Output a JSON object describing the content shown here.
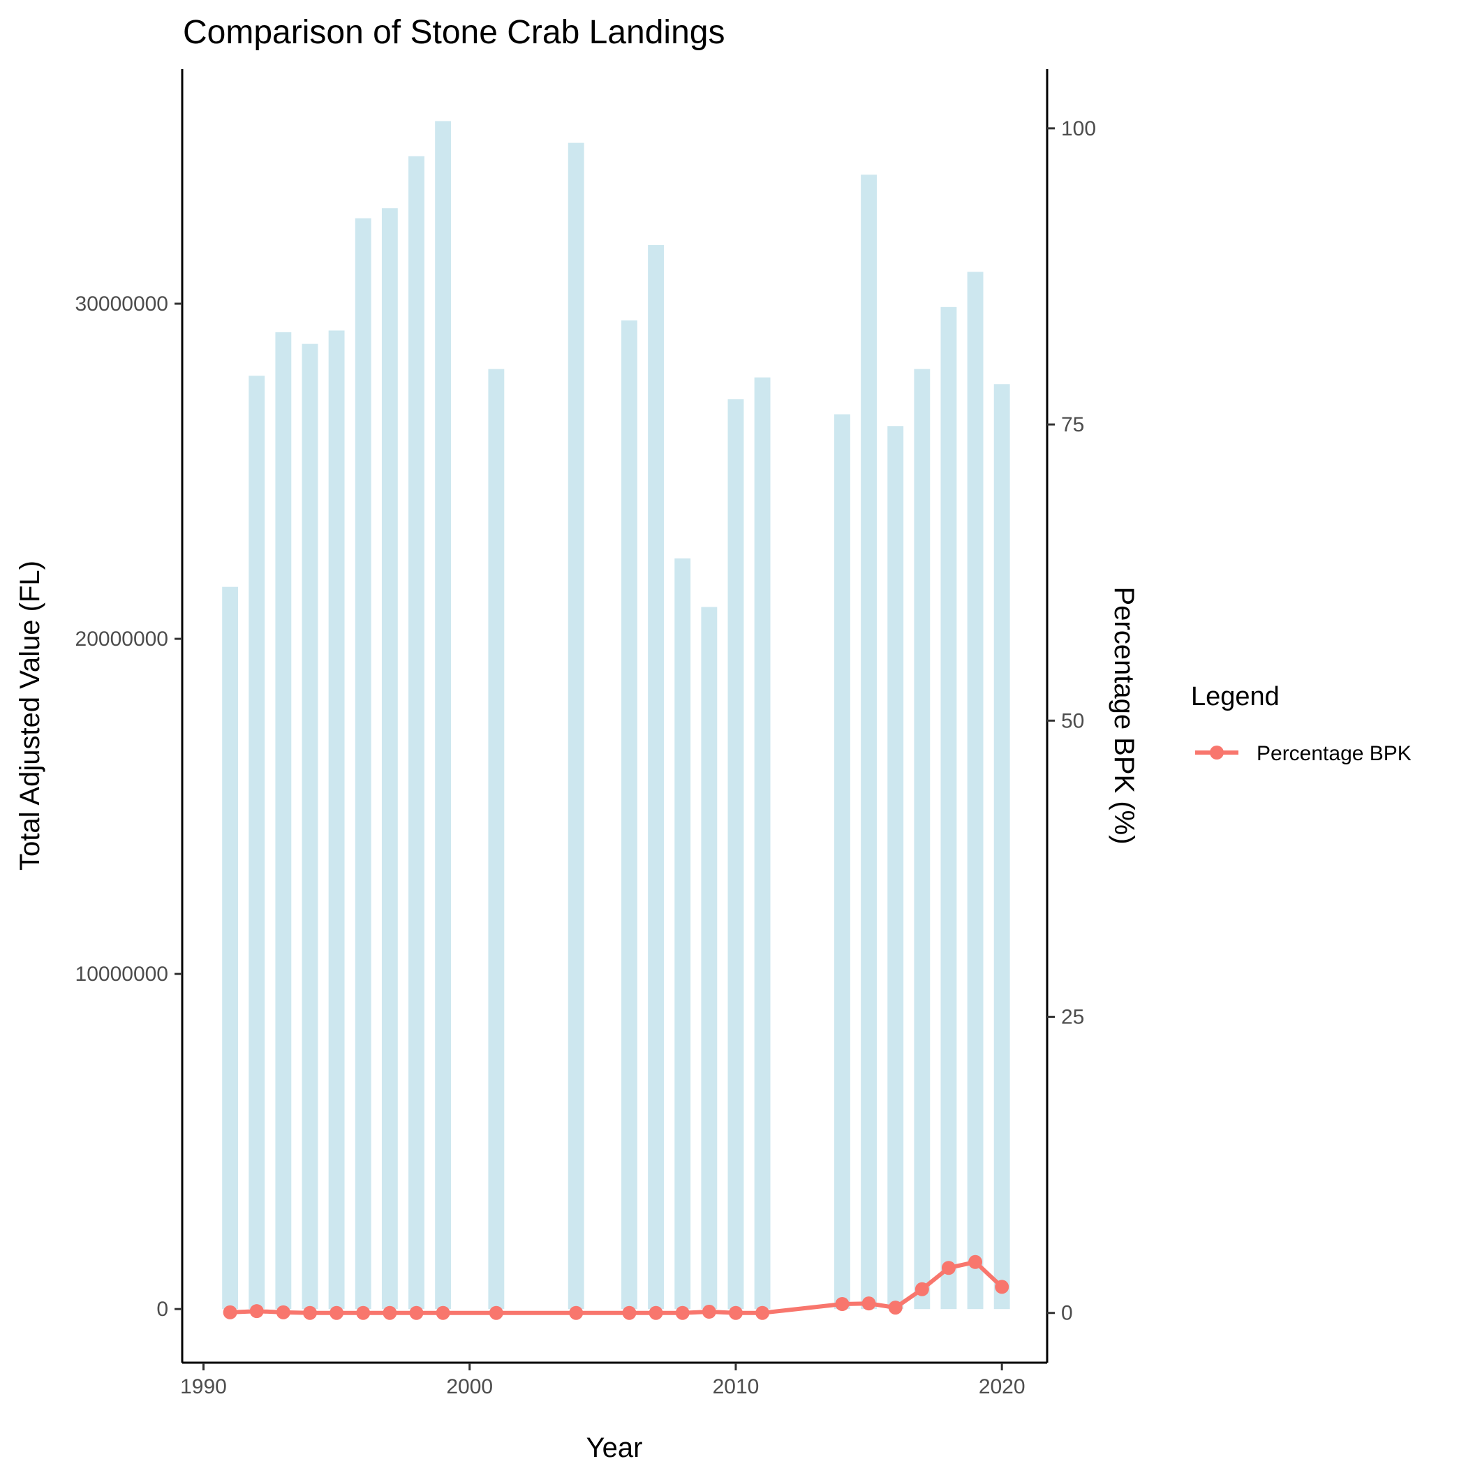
{
  "chart_data": {
    "type": "bar",
    "title": "Comparison of Stone Crab Landings",
    "xlabel": "Year",
    "ylabel": "Total Adjusted Value (FL)",
    "y2label": "Percentage BPK (%)",
    "xlim": [
      1989.2,
      2021.7
    ],
    "ylim": [
      -1600000,
      37000000
    ],
    "y2lim": [
      -4.2,
      105
    ],
    "x_ticks": [
      1990,
      2000,
      2010,
      2020
    ],
    "y_ticks": [
      0,
      10000000,
      20000000,
      30000000
    ],
    "y_tick_labels": [
      "0",
      "10000000",
      "20000000",
      "30000000"
    ],
    "y2_ticks": [
      0,
      25,
      50,
      75,
      100
    ],
    "y2_tick_labels": [
      "0",
      "25",
      "50",
      "75",
      "100"
    ],
    "grid": false,
    "legend": {
      "title": "Legend",
      "position": "right",
      "entries": [
        {
          "label": "Percentage BPK",
          "color": "#F8766D"
        }
      ]
    },
    "bar_color": "#CDE7EF",
    "line_color": "#F8766D",
    "bars": {
      "x": [
        1991,
        1992,
        1993,
        1994,
        1995,
        1996,
        1997,
        1998,
        1999,
        2001,
        2004,
        2006,
        2007,
        2008,
        2009,
        2010,
        2011,
        2014,
        2015,
        2016,
        2017,
        2018,
        2019,
        2020
      ],
      "values": [
        21550000,
        27850000,
        29150000,
        28800000,
        29200000,
        32550000,
        32850000,
        34400000,
        35450000,
        28050000,
        34800000,
        29500000,
        31750000,
        22400000,
        20950000,
        27150000,
        27800000,
        26700000,
        33850000,
        26350000,
        28050000,
        29900000,
        30950000,
        27600000
      ]
    },
    "series": [
      {
        "name": "Percentage BPK",
        "x": [
          1991,
          1992,
          1993,
          1994,
          1995,
          1996,
          1997,
          1998,
          1999,
          2001,
          2004,
          2006,
          2007,
          2008,
          2009,
          2010,
          2011,
          2014,
          2015,
          2016,
          2017,
          2018,
          2019,
          2020
        ],
        "values": [
          0.05,
          0.15,
          0.05,
          0.0,
          0.0,
          0.0,
          0.0,
          0.0,
          0.0,
          0.0,
          0.0,
          0.0,
          0.0,
          0.0,
          0.1,
          0.0,
          0.0,
          0.75,
          0.8,
          0.45,
          2.0,
          3.8,
          4.3,
          2.2
        ]
      }
    ]
  }
}
